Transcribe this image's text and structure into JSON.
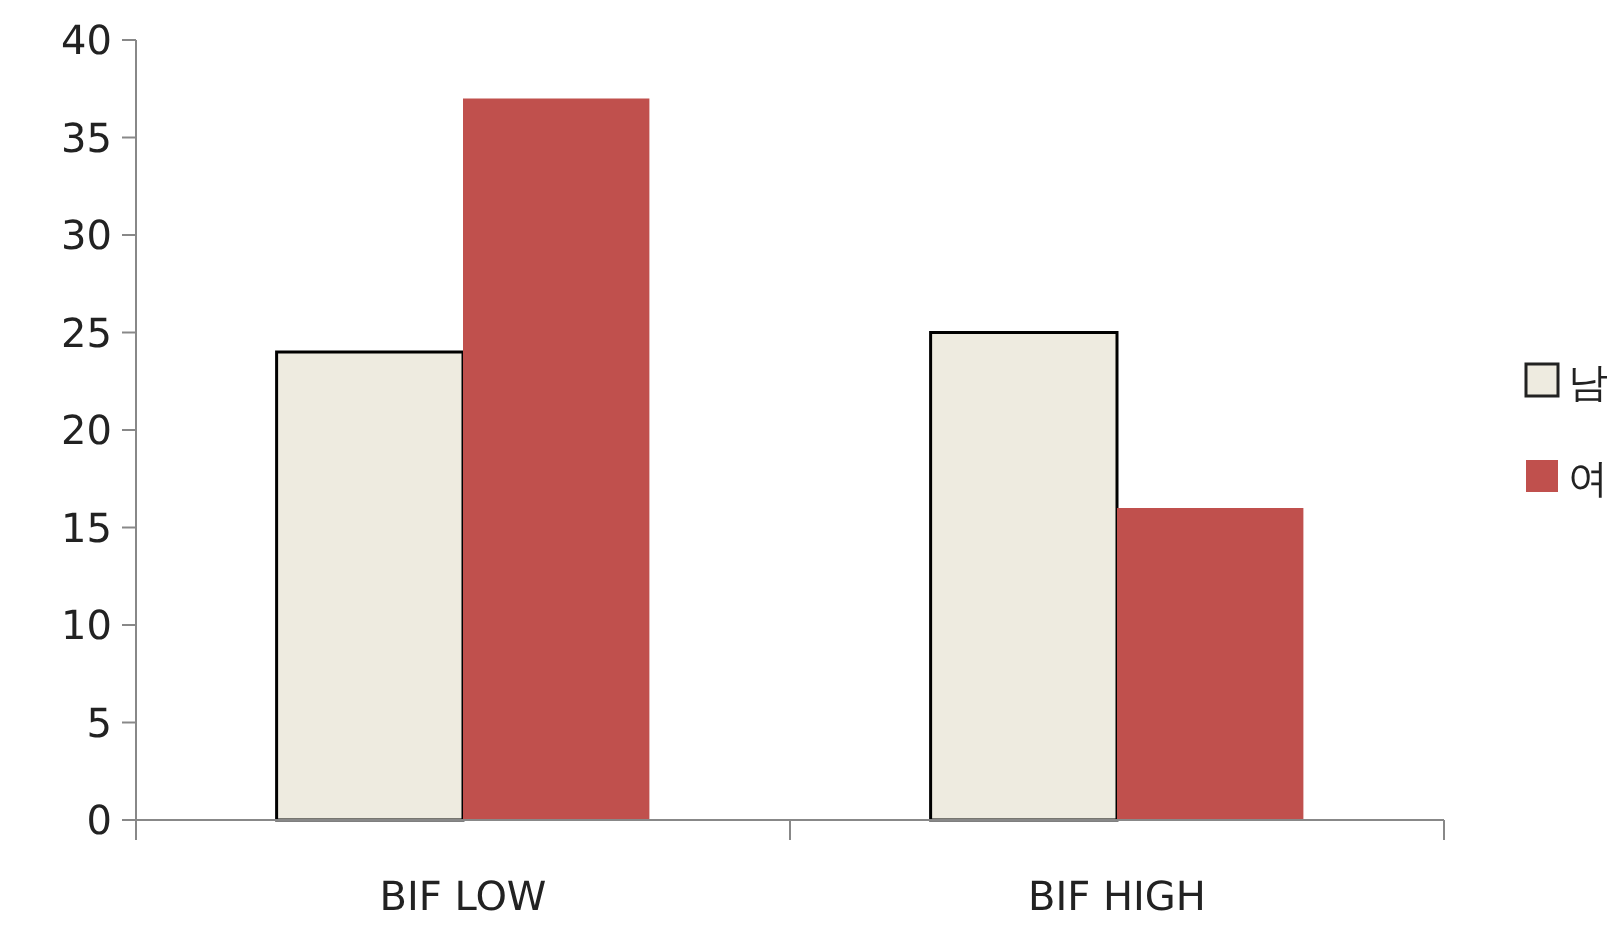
{
  "chart_data": {
    "type": "bar",
    "categories": [
      "BIF LOW",
      "BIF HIGH"
    ],
    "series": [
      {
        "name": "남",
        "color": "#eeebe0",
        "values": [
          24,
          25
        ]
      },
      {
        "name": "여",
        "color": "#c0504d",
        "values": [
          37,
          16
        ]
      }
    ],
    "ylim": [
      0,
      40
    ],
    "yticks": [
      0,
      5,
      10,
      15,
      20,
      25,
      30,
      35,
      40
    ],
    "grid": false,
    "legend": "right"
  }
}
